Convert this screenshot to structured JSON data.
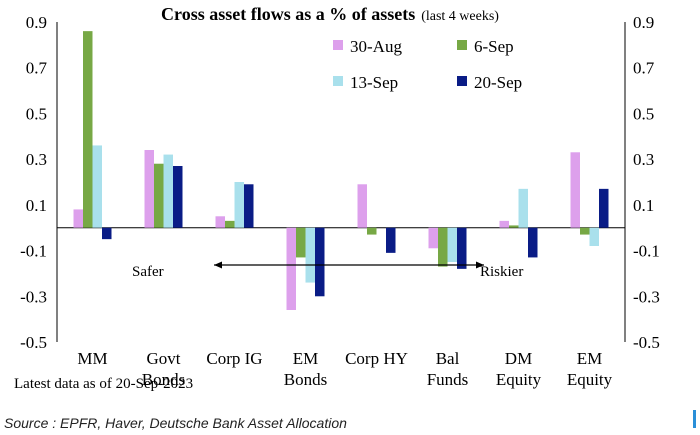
{
  "chart_data": {
    "type": "bar",
    "title": "Cross asset flows as a % of assets",
    "title_suffix": "(last 4 weeks)",
    "categories": [
      [
        "MM"
      ],
      [
        "Govt",
        "Bonds"
      ],
      [
        "Corp IG"
      ],
      [
        "EM",
        "Bonds"
      ],
      [
        "Corp HY"
      ],
      [
        "Bal",
        "Funds"
      ],
      [
        "DM",
        "Equity"
      ],
      [
        "EM",
        "Equity"
      ]
    ],
    "series": [
      {
        "name": "30-Aug",
        "color": "#DDA0EC",
        "values": [
          0.08,
          0.34,
          0.05,
          -0.36,
          0.19,
          -0.09,
          0.03,
          0.33
        ]
      },
      {
        "name": "6-Sep",
        "color": "#77A845",
        "values": [
          0.86,
          0.28,
          0.03,
          -0.13,
          -0.03,
          -0.17,
          0.01,
          -0.03
        ]
      },
      {
        "name": "13-Sep",
        "color": "#A9E0EC",
        "values": [
          0.36,
          0.32,
          0.2,
          -0.24,
          0.0,
          -0.15,
          0.17,
          -0.08
        ]
      },
      {
        "name": "20-Sep",
        "color": "#0A1C86",
        "values": [
          -0.05,
          0.27,
          0.19,
          -0.3,
          -0.11,
          -0.18,
          -0.13,
          0.17
        ]
      }
    ],
    "ylim": [
      -0.5,
      0.9
    ],
    "yticks": [
      -0.5,
      -0.3,
      -0.1,
      0.1,
      0.3,
      0.5,
      0.7,
      0.9
    ],
    "yticks_right": true,
    "legend_position": "top-right",
    "annotations": {
      "left": "Safer",
      "right": "Riskier"
    }
  },
  "footnote": "Latest data as of 20-Sep-2023",
  "source": "Source : EPFR, Haver, Deutsche Bank Asset Allocation"
}
